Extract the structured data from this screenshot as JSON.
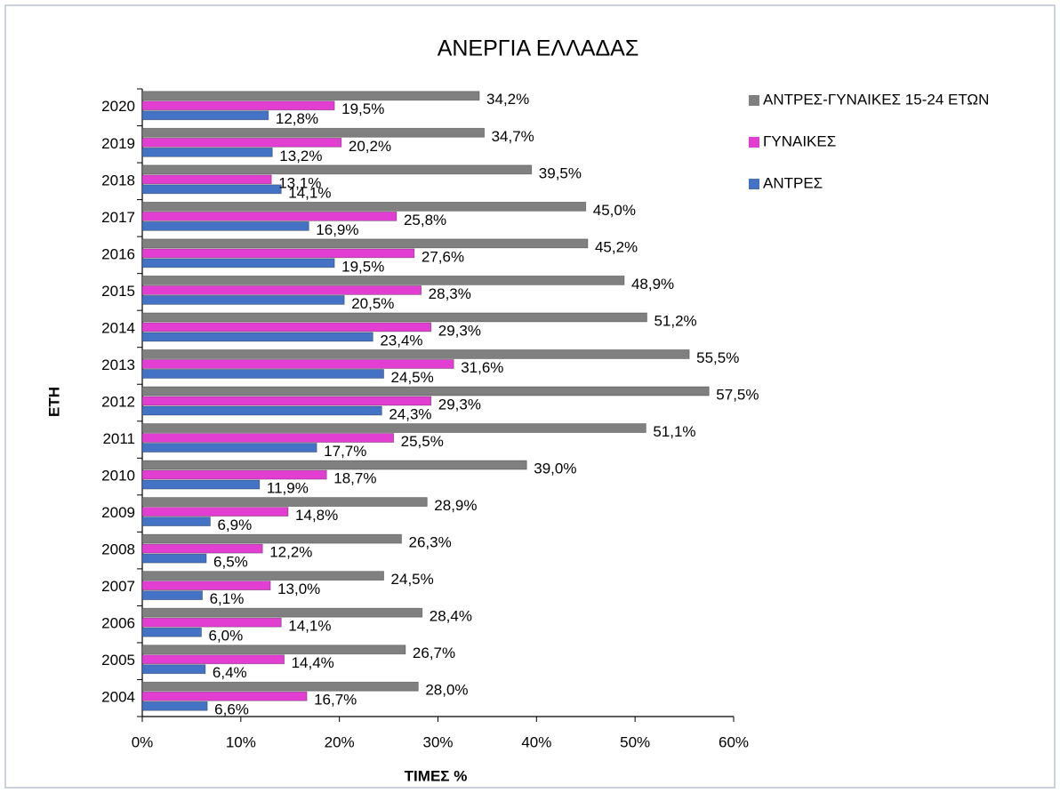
{
  "chart_data": {
    "type": "bar",
    "horizontal": true,
    "title": "ΑΝΕΡΓΙΑ ΕΛΛΑΔΑΣ",
    "x_label": "ΤΙΜΕΣ %",
    "y_label": "ΕΤΗ",
    "categories": [
      "2004",
      "2005",
      "2006",
      "2007",
      "2008",
      "2009",
      "2010",
      "2011",
      "2012",
      "2013",
      "2014",
      "2015",
      "2016",
      "2017",
      "2018",
      "2019",
      "2020"
    ],
    "series": [
      {
        "name": "ΑΝΤΡΕΣ",
        "color": "#4472c4",
        "values": [
          6.6,
          6.4,
          6.0,
          6.1,
          6.5,
          6.9,
          11.9,
          17.7,
          24.3,
          24.5,
          23.4,
          20.5,
          19.5,
          16.9,
          14.1,
          13.2,
          12.8
        ],
        "value_labels": [
          "6,6%",
          "6,4%",
          "6,0%",
          "6,1%",
          "6,5%",
          "6,9%",
          "11,9%",
          "17,7%",
          "24,3%",
          "24,5%",
          "23,4%",
          "20,5%",
          "19,5%",
          "16,9%",
          "14,1%",
          "13,2%",
          "12,8%"
        ]
      },
      {
        "name": "ΓΥΝΑΙΚΕΣ",
        "color": "#e23ed2",
        "values": [
          16.7,
          14.4,
          14.1,
          13.0,
          12.2,
          14.8,
          18.7,
          25.5,
          29.3,
          31.6,
          29.3,
          28.3,
          27.6,
          25.8,
          13.1,
          20.2,
          19.5
        ],
        "value_labels": [
          "16,7%",
          "14,4%",
          "14,1%",
          "13,0%",
          "12,2%",
          "14,8%",
          "18,7%",
          "25,5%",
          "29,3%",
          "31,6%",
          "29,3%",
          "28,3%",
          "27,6%",
          "25,8%",
          "13,1%",
          "20,2%",
          "19,5%"
        ]
      },
      {
        "name": "ΑΝΤΡΕΣ-ΓΥΝΑΙΚΕΣ 15-24 ΕΤΩΝ",
        "color": "#808080",
        "values": [
          28.0,
          26.7,
          28.4,
          24.5,
          26.3,
          28.9,
          39.0,
          51.1,
          57.5,
          55.5,
          51.2,
          48.9,
          45.2,
          45.0,
          39.5,
          34.7,
          34.2
        ],
        "value_labels": [
          "28,0%",
          "26,7%",
          "28,4%",
          "24,5%",
          "26,3%",
          "28,9%",
          "39,0%",
          "51,1%",
          "57,5%",
          "55,5%",
          "51,2%",
          "48,9%",
          "45,2%",
          "45,0%",
          "39,5%",
          "34,7%",
          "34,2%"
        ]
      }
    ],
    "xlim": [
      0,
      60
    ],
    "xticks": [
      {
        "value": 0,
        "label": "0%"
      },
      {
        "value": 10,
        "label": "10%"
      },
      {
        "value": 20,
        "label": "20%"
      },
      {
        "value": 30,
        "label": "30%"
      },
      {
        "value": 40,
        "label": "40%"
      },
      {
        "value": 50,
        "label": "50%"
      },
      {
        "value": 60,
        "label": "60%"
      }
    ],
    "grid": false,
    "legend": "right"
  }
}
